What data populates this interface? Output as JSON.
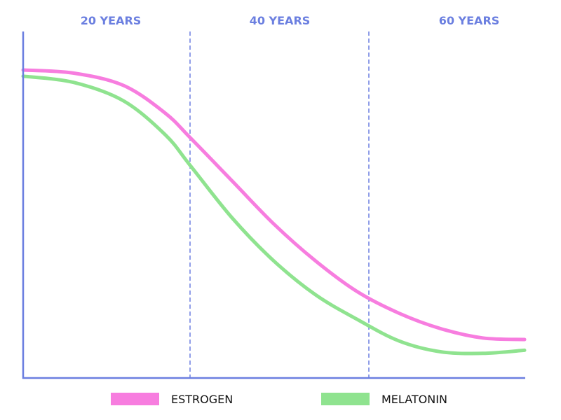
{
  "chart_data": {
    "type": "line",
    "title": "",
    "xlabel": "",
    "ylabel": "",
    "x_categories": [
      "20 YEARS",
      "40 YEARS",
      "60 YEARS"
    ],
    "x_ticks_visible": false,
    "y_ticks_visible": false,
    "grid": false,
    "legend_placement": "bottom",
    "series": [
      {
        "name": "ESTROGEN",
        "color": "#f77ddf",
        "points": [
          [
            0,
            100
          ],
          [
            6,
            99
          ],
          [
            12,
            95
          ],
          [
            17,
            86
          ],
          [
            20,
            78
          ],
          [
            25,
            64
          ],
          [
            30,
            50
          ],
          [
            35,
            38
          ],
          [
            40,
            28
          ],
          [
            45,
            21
          ],
          [
            50,
            16
          ],
          [
            55,
            13
          ],
          [
            60,
            12.5
          ]
        ]
      },
      {
        "name": "MELATONIN",
        "color": "#8fe38f",
        "points": [
          [
            0,
            98
          ],
          [
            6,
            96
          ],
          [
            12,
            90
          ],
          [
            17,
            79
          ],
          [
            20,
            69
          ],
          [
            25,
            52
          ],
          [
            30,
            38
          ],
          [
            35,
            27
          ],
          [
            40,
            19
          ],
          [
            45,
            12
          ],
          [
            50,
            8.5
          ],
          [
            55,
            8
          ],
          [
            60,
            9
          ]
        ]
      }
    ],
    "dividers": [
      20,
      40
    ]
  },
  "colors": {
    "axis": "#6b7fe0",
    "divider": "#6b7fe0",
    "column_label": "#6b7fe0"
  }
}
